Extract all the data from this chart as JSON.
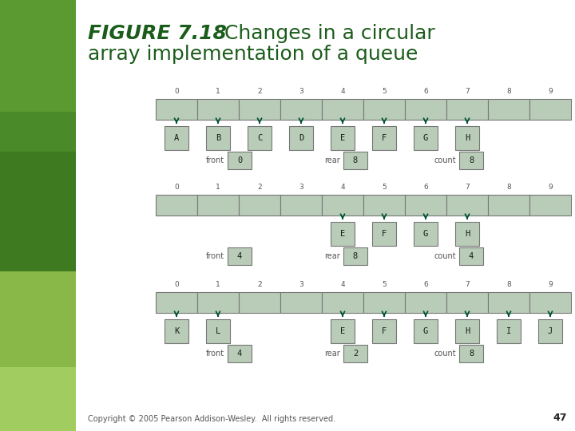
{
  "bg_color": "#ffffff",
  "left_panel_color": "#5a8a3a",
  "cell_color": "#b8ccb8",
  "cell_edge_color": "#777777",
  "arrow_color": "#005533",
  "title_bold": "FIGURE 7.18",
  "title_normal": "  Changes in a circular\narray implementation of a queue",
  "title_color": "#1a5c1a",
  "footer": "Copyright © 2005 Pearson Addison-Wesley.  All rights reserved.",
  "footer_page": "47",
  "n_cells": 10,
  "sections": [
    {
      "array_indices": [
        "0",
        "1",
        "2",
        "3",
        "4",
        "5",
        "6",
        "7",
        "8",
        "9"
      ],
      "filled_cells": [
        0,
        1,
        2,
        3,
        4,
        5,
        6,
        7,
        8,
        9
      ],
      "labels": [
        "A",
        "B",
        "C",
        "D",
        "E",
        "F",
        "G",
        "H"
      ],
      "label_indices": [
        0,
        1,
        2,
        3,
        4,
        5,
        6,
        7
      ],
      "front_val": "0",
      "rear_val": "8",
      "count_val": "8"
    },
    {
      "array_indices": [
        "0",
        "1",
        "2",
        "3",
        "4",
        "5",
        "6",
        "7",
        "8",
        "9"
      ],
      "filled_cells": [
        0,
        1,
        2,
        3,
        4,
        5,
        6,
        7,
        8,
        9
      ],
      "labels": [
        "E",
        "F",
        "G",
        "H"
      ],
      "label_indices": [
        4,
        5,
        6,
        7
      ],
      "front_val": "4",
      "rear_val": "8",
      "count_val": "4"
    },
    {
      "array_indices": [
        "0",
        "1",
        "2",
        "3",
        "4",
        "5",
        "6",
        "7",
        "8",
        "9"
      ],
      "filled_cells": [
        0,
        1,
        2,
        3,
        4,
        5,
        6,
        7,
        8,
        9
      ],
      "labels": [
        "K",
        "L",
        "E",
        "F",
        "G",
        "H",
        "I",
        "J"
      ],
      "label_indices": [
        0,
        1,
        4,
        5,
        6,
        7,
        8,
        9
      ],
      "front_val": "4",
      "rear_val": "2",
      "count_val": "8"
    }
  ]
}
